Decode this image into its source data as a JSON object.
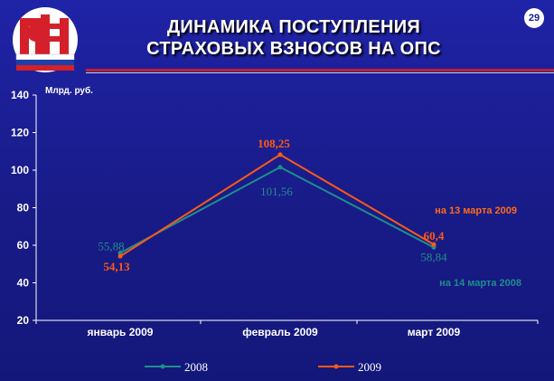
{
  "title_lines": [
    "ДИНАМИКА ПОСТУПЛЕНИЯ",
    "СТРАХОВЫХ ВЗНОСОВ НА ОПС"
  ],
  "page_number": "29",
  "logo_text": "ПФР",
  "colors": {
    "series_2008": "#1e8f8a",
    "series_2009": "#ff5a14",
    "note_2009": "#ff6a1a",
    "note_2008": "#1e8f8a",
    "accent_red": "#c0212b"
  },
  "chart_data": {
    "type": "line",
    "ylabel": "Млрд. руб.",
    "categories": [
      "январь 2009",
      "февраль 2009",
      "март 2009"
    ],
    "ylim": [
      20,
      140
    ],
    "yticks": [
      20,
      40,
      60,
      80,
      100,
      120,
      140
    ],
    "grid": false,
    "legend_position": "bottom",
    "series": [
      {
        "name": "2008",
        "values": [
          55.88,
          101.56,
          58.84
        ],
        "labels": [
          "55,88",
          "101,56",
          "58,84"
        ]
      },
      {
        "name": "2009",
        "values": [
          54.13,
          108.25,
          60.4
        ],
        "labels": [
          "54,13",
          "108,25",
          "60,4"
        ]
      }
    ],
    "annotations": [
      {
        "text": "на 13 марта 2009",
        "series": "2009"
      },
      {
        "text": "на 14 марта 2008",
        "series": "2008"
      }
    ]
  }
}
